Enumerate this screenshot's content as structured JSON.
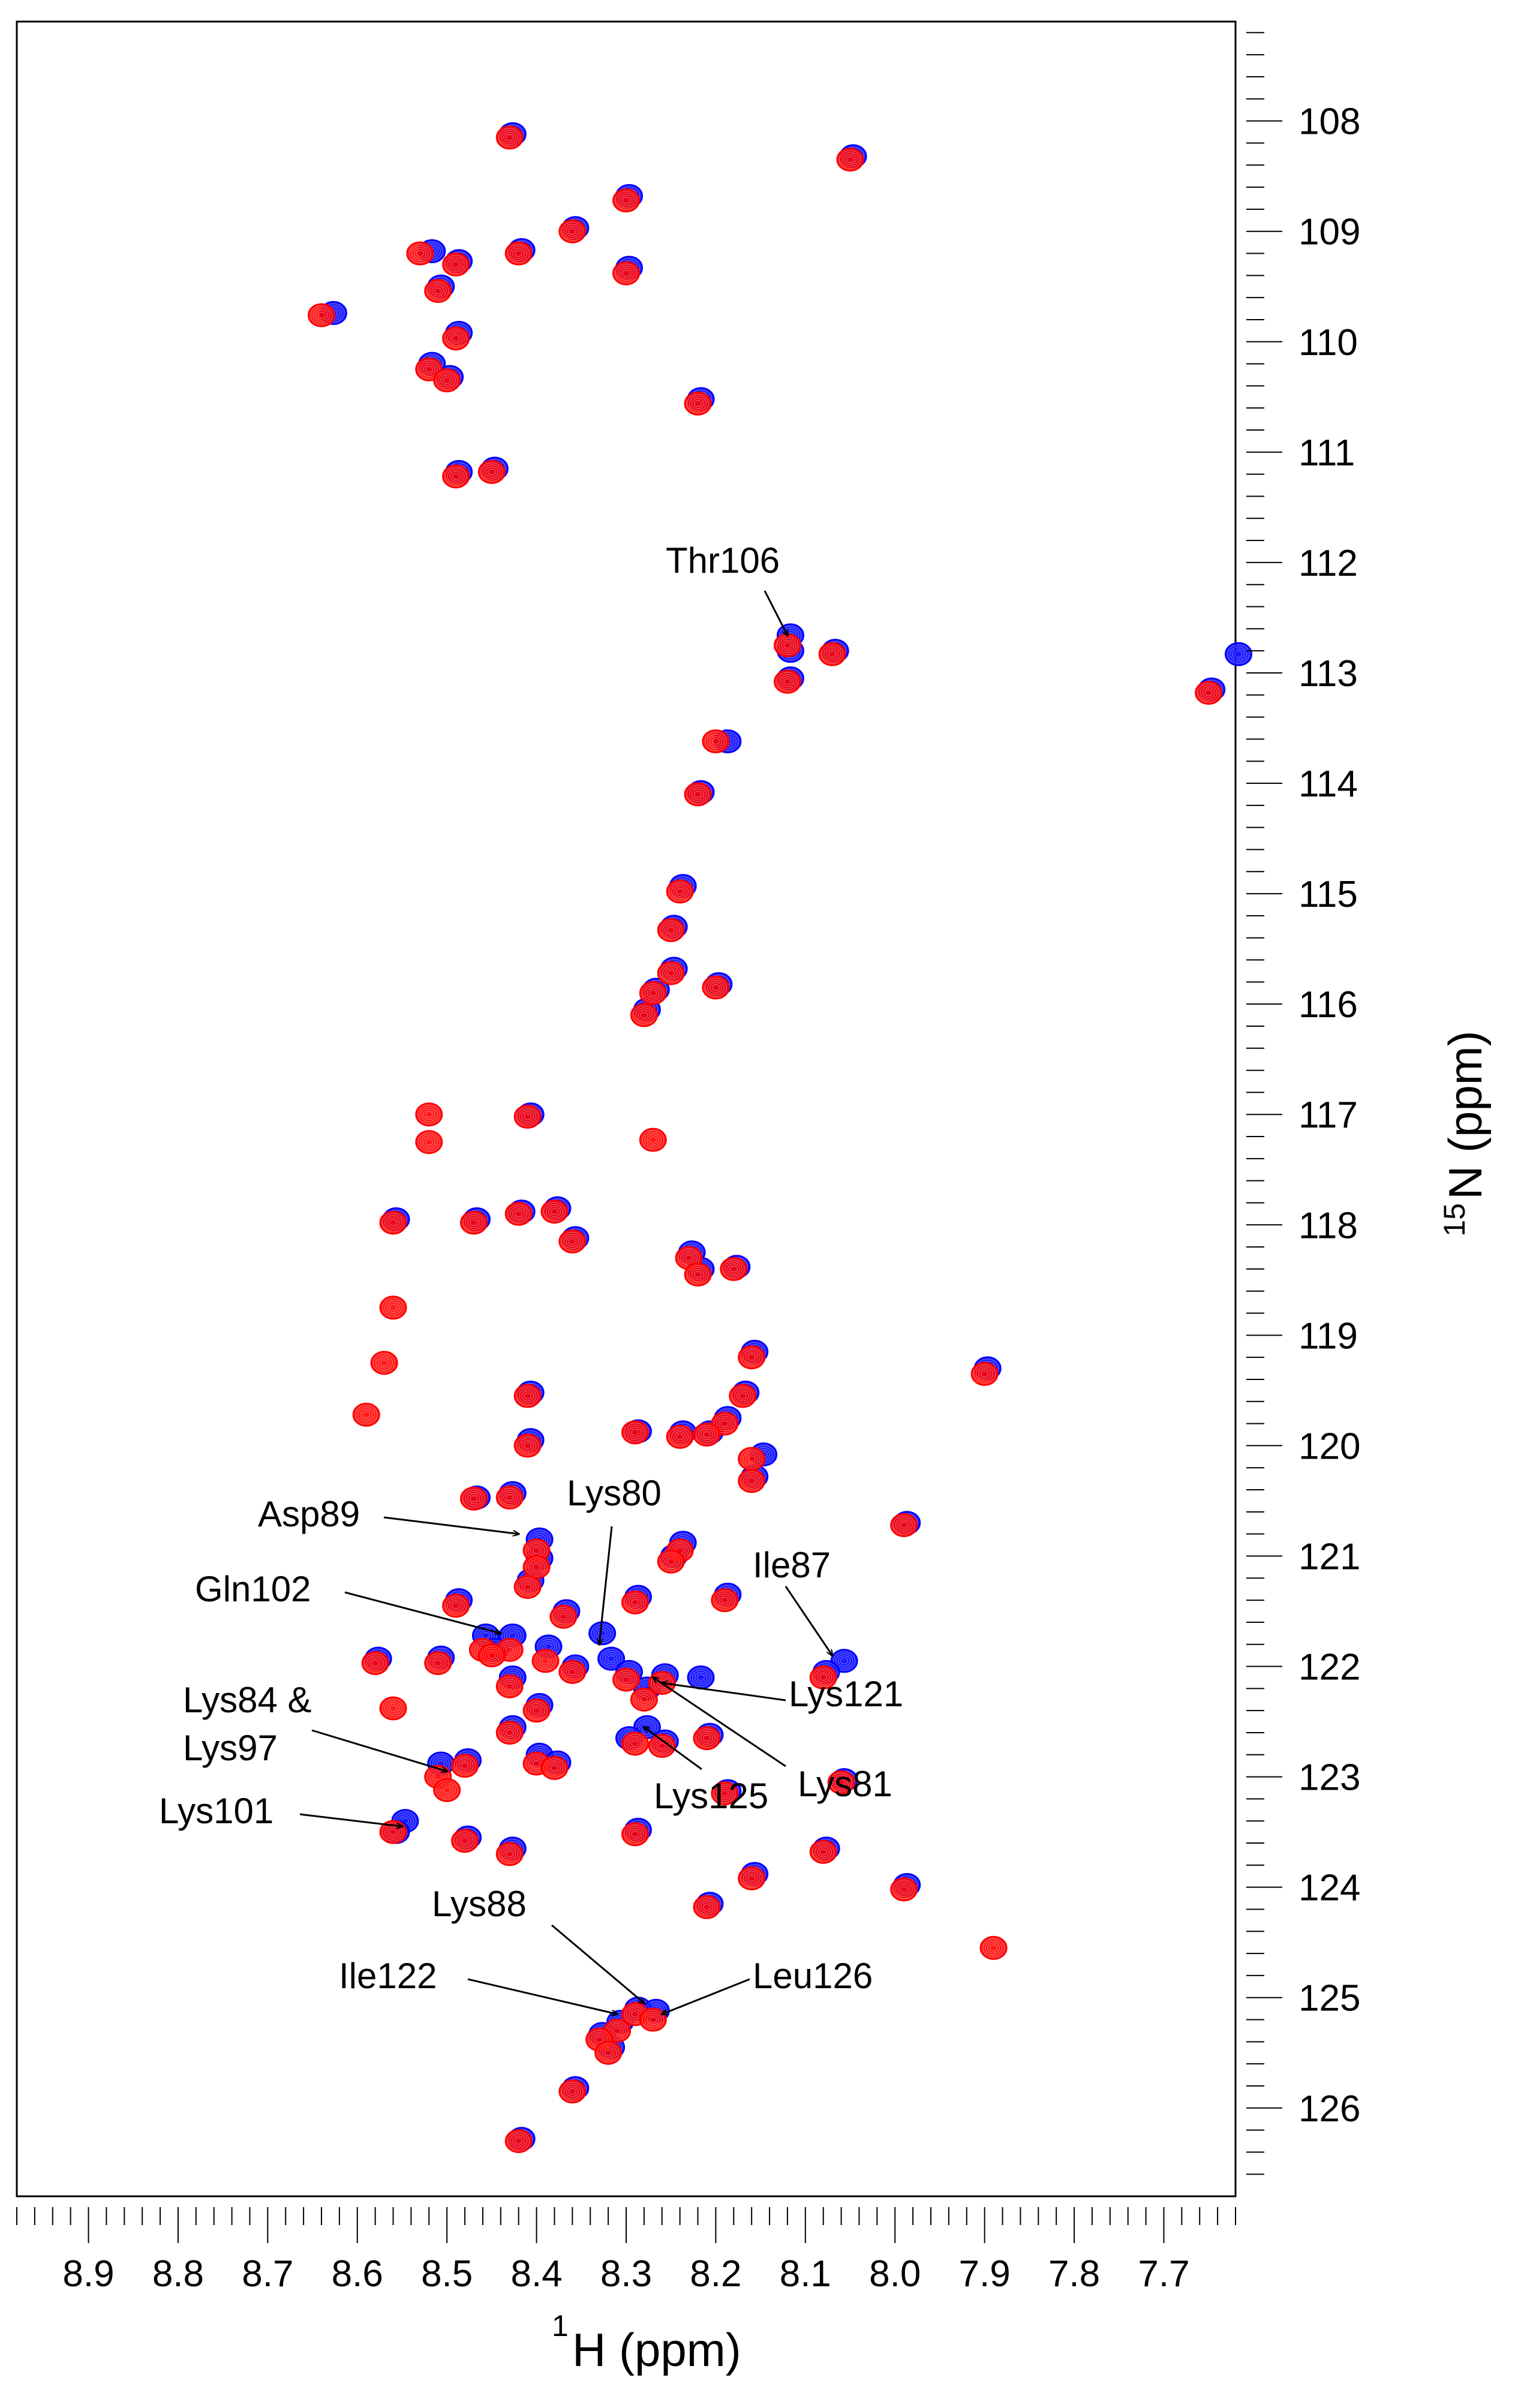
{
  "chart_data": {
    "type": "scatter",
    "title": "",
    "xlabel": {
      "sup": "1",
      "text": "H (ppm)"
    },
    "ylabel": {
      "sup": "15",
      "text": "N (ppm)"
    },
    "xlim": [
      8.98,
      7.62
    ],
    "ylim": [
      107.1,
      126.8
    ],
    "x_ticks": [
      "8.9",
      "8.8",
      "8.7",
      "8.6",
      "8.5",
      "8.4",
      "8.3",
      "8.2",
      "8.1",
      "8.0",
      "7.9",
      "7.8",
      "7.7"
    ],
    "y_ticks": [
      "108",
      "109",
      "110",
      "111",
      "112",
      "113",
      "114",
      "115",
      "116",
      "117",
      "118",
      "119",
      "120",
      "121",
      "122",
      "123",
      "124",
      "125",
      "126"
    ],
    "colors": {
      "spectrum_1": "#0000ff",
      "spectrum_2": "#ff0000",
      "axis": "#000000"
    },
    "series": [
      {
        "name": "spectrum_1",
        "color": "#0000ff",
        "points": [
          [
            8.43,
            108.12
          ],
          [
            8.05,
            108.32
          ],
          [
            8.3,
            108.68
          ],
          [
            8.36,
            108.97
          ],
          [
            8.52,
            109.18
          ],
          [
            8.49,
            109.27
          ],
          [
            8.42,
            109.17
          ],
          [
            8.3,
            109.33
          ],
          [
            8.51,
            109.5
          ],
          [
            8.63,
            109.74
          ],
          [
            8.49,
            109.92
          ],
          [
            8.52,
            110.2
          ],
          [
            8.5,
            110.32
          ],
          [
            8.22,
            110.52
          ],
          [
            8.49,
            111.18
          ],
          [
            8.45,
            111.15
          ],
          [
            8.12,
            112.66
          ],
          [
            8.12,
            112.8
          ],
          [
            8.07,
            112.8
          ],
          [
            7.62,
            112.83
          ],
          [
            8.12,
            113.05
          ],
          [
            7.65,
            113.15
          ],
          [
            8.19,
            113.62
          ],
          [
            8.22,
            114.08
          ],
          [
            8.24,
            114.93
          ],
          [
            8.25,
            115.3
          ],
          [
            8.25,
            115.68
          ],
          [
            8.27,
            115.87
          ],
          [
            8.28,
            116.05
          ],
          [
            8.2,
            115.82
          ],
          [
            8.41,
            117.0
          ],
          [
            8.56,
            117.95
          ],
          [
            8.47,
            117.95
          ],
          [
            8.42,
            117.88
          ],
          [
            8.38,
            117.85
          ],
          [
            8.36,
            118.12
          ],
          [
            8.23,
            118.25
          ],
          [
            8.22,
            118.4
          ],
          [
            8.18,
            118.38
          ],
          [
            8.16,
            119.15
          ],
          [
            8.17,
            119.52
          ],
          [
            8.19,
            119.75
          ],
          [
            8.21,
            119.88
          ],
          [
            8.24,
            119.88
          ],
          [
            8.29,
            119.87
          ],
          [
            8.41,
            119.52
          ],
          [
            8.41,
            119.95
          ],
          [
            8.15,
            120.08
          ],
          [
            8.16,
            120.28
          ],
          [
            7.9,
            119.3
          ],
          [
            7.99,
            120.7
          ],
          [
            8.47,
            120.47
          ],
          [
            8.43,
            120.43
          ],
          [
            8.4,
            120.85
          ],
          [
            8.4,
            121.02
          ],
          [
            8.41,
            121.22
          ],
          [
            8.24,
            120.88
          ],
          [
            8.25,
            121.0
          ],
          [
            8.29,
            121.37
          ],
          [
            8.19,
            121.35
          ],
          [
            8.37,
            121.5
          ],
          [
            8.33,
            121.7
          ],
          [
            8.43,
            121.72
          ],
          [
            8.39,
            121.82
          ],
          [
            8.46,
            121.72
          ],
          [
            8.49,
            121.4
          ],
          [
            8.58,
            121.93
          ],
          [
            8.51,
            121.92
          ],
          [
            8.45,
            121.85
          ],
          [
            8.36,
            122.0
          ],
          [
            8.32,
            121.93
          ],
          [
            8.3,
            122.05
          ],
          [
            8.28,
            122.2
          ],
          [
            8.26,
            122.08
          ],
          [
            8.22,
            122.1
          ],
          [
            8.06,
            121.95
          ],
          [
            8.08,
            122.05
          ],
          [
            8.28,
            122.55
          ],
          [
            8.3,
            122.65
          ],
          [
            8.26,
            122.68
          ],
          [
            8.21,
            122.62
          ],
          [
            8.43,
            122.55
          ],
          [
            8.4,
            122.8
          ],
          [
            8.38,
            122.87
          ],
          [
            8.4,
            122.35
          ],
          [
            8.43,
            122.1
          ],
          [
            8.51,
            122.88
          ],
          [
            8.48,
            122.85
          ],
          [
            8.55,
            123.4
          ],
          [
            8.56,
            123.5
          ],
          [
            8.48,
            123.55
          ],
          [
            8.43,
            123.65
          ],
          [
            8.29,
            123.48
          ],
          [
            8.19,
            123.13
          ],
          [
            8.16,
            123.88
          ],
          [
            8.08,
            123.65
          ],
          [
            8.06,
            123.03
          ],
          [
            7.99,
            123.98
          ],
          [
            8.21,
            124.15
          ],
          [
            8.29,
            125.1
          ],
          [
            8.27,
            125.12
          ],
          [
            8.31,
            125.22
          ],
          [
            8.33,
            125.33
          ],
          [
            8.32,
            125.45
          ],
          [
            8.36,
            125.82
          ],
          [
            8.42,
            126.28
          ]
        ]
      },
      {
        "name": "spectrum_2",
        "color": "#ff0000",
        "points": [
          [
            8.43,
            108.15
          ],
          [
            8.05,
            108.35
          ],
          [
            8.3,
            108.72
          ],
          [
            8.36,
            109.0
          ],
          [
            8.53,
            109.2
          ],
          [
            8.49,
            109.3
          ],
          [
            8.42,
            109.2
          ],
          [
            8.3,
            109.38
          ],
          [
            8.51,
            109.54
          ],
          [
            8.64,
            109.76
          ],
          [
            8.49,
            109.97
          ],
          [
            8.52,
            110.25
          ],
          [
            8.5,
            110.35
          ],
          [
            8.22,
            110.56
          ],
          [
            8.49,
            111.22
          ],
          [
            8.45,
            111.18
          ],
          [
            8.12,
            112.75
          ],
          [
            8.07,
            112.83
          ],
          [
            8.12,
            113.08
          ],
          [
            7.65,
            113.18
          ],
          [
            8.2,
            113.62
          ],
          [
            8.22,
            114.1
          ],
          [
            8.24,
            114.98
          ],
          [
            8.25,
            115.33
          ],
          [
            8.25,
            115.72
          ],
          [
            8.27,
            115.9
          ],
          [
            8.28,
            116.1
          ],
          [
            8.2,
            115.85
          ],
          [
            8.41,
            117.02
          ],
          [
            8.52,
            117.0
          ],
          [
            8.52,
            117.25
          ],
          [
            8.27,
            117.23
          ],
          [
            8.56,
            117.98
          ],
          [
            8.47,
            117.98
          ],
          [
            8.42,
            117.9
          ],
          [
            8.38,
            117.88
          ],
          [
            8.36,
            118.15
          ],
          [
            8.23,
            118.3
          ],
          [
            8.22,
            118.45
          ],
          [
            8.18,
            118.4
          ],
          [
            8.16,
            119.2
          ],
          [
            8.17,
            119.55
          ],
          [
            8.19,
            119.8
          ],
          [
            8.21,
            119.9
          ],
          [
            8.24,
            119.92
          ],
          [
            8.29,
            119.88
          ],
          [
            8.41,
            119.55
          ],
          [
            8.41,
            120.0
          ],
          [
            8.16,
            120.12
          ],
          [
            8.16,
            120.32
          ],
          [
            7.9,
            119.35
          ],
          [
            7.99,
            120.72
          ],
          [
            8.56,
            118.75
          ],
          [
            8.57,
            119.25
          ],
          [
            8.59,
            119.72
          ],
          [
            8.47,
            120.48
          ],
          [
            8.43,
            120.47
          ],
          [
            8.4,
            120.95
          ],
          [
            8.4,
            121.1
          ],
          [
            8.41,
            121.28
          ],
          [
            8.24,
            120.95
          ],
          [
            8.25,
            121.05
          ],
          [
            8.29,
            121.42
          ],
          [
            8.19,
            121.4
          ],
          [
            8.37,
            121.55
          ],
          [
            8.43,
            121.85
          ],
          [
            8.39,
            121.95
          ],
          [
            8.46,
            121.85
          ],
          [
            8.49,
            121.45
          ],
          [
            8.58,
            121.97
          ],
          [
            8.51,
            121.97
          ],
          [
            8.45,
            121.9
          ],
          [
            8.36,
            122.05
          ],
          [
            8.3,
            122.12
          ],
          [
            8.28,
            122.3
          ],
          [
            8.26,
            122.15
          ],
          [
            8.08,
            122.1
          ],
          [
            8.29,
            122.7
          ],
          [
            8.26,
            122.72
          ],
          [
            8.21,
            122.65
          ],
          [
            8.43,
            122.6
          ],
          [
            8.4,
            122.88
          ],
          [
            8.38,
            122.92
          ],
          [
            8.4,
            122.4
          ],
          [
            8.43,
            122.18
          ],
          [
            8.51,
            123.0
          ],
          [
            8.5,
            123.12
          ],
          [
            8.48,
            122.9
          ],
          [
            8.56,
            123.5
          ],
          [
            8.48,
            123.58
          ],
          [
            8.43,
            123.7
          ],
          [
            8.29,
            123.52
          ],
          [
            8.19,
            123.15
          ],
          [
            8.16,
            123.92
          ],
          [
            8.08,
            123.68
          ],
          [
            8.06,
            123.05
          ],
          [
            7.99,
            124.02
          ],
          [
            8.21,
            124.18
          ],
          [
            8.29,
            125.15
          ],
          [
            8.27,
            125.2
          ],
          [
            8.31,
            125.3
          ],
          [
            8.33,
            125.38
          ],
          [
            8.32,
            125.5
          ],
          [
            8.36,
            125.85
          ],
          [
            8.42,
            126.3
          ],
          [
            7.89,
            124.55
          ],
          [
            8.56,
            122.38
          ]
        ]
      }
    ],
    "annotations": [
      {
        "label": "Thr106",
        "target": [
          8.12,
          112.66
        ]
      },
      {
        "label": "Asp89",
        "target": [
          8.42,
          120.8
        ]
      },
      {
        "label": "Lys80",
        "target": [
          8.33,
          121.8
        ]
      },
      {
        "label": "Ile87",
        "target": [
          8.07,
          121.9
        ]
      },
      {
        "label": "Gln102",
        "target": [
          8.44,
          121.7
        ]
      },
      {
        "label": "Lys121",
        "target": [
          8.26,
          122.15
        ]
      },
      {
        "label": "Lys84 &",
        "target": [
          8.5,
          122.95
        ]
      },
      {
        "label": "Lys97",
        "target": [
          8.5,
          122.95
        ]
      },
      {
        "label": "Lys81",
        "target": [
          8.27,
          122.1
        ]
      },
      {
        "label": "Lys125",
        "target": [
          8.28,
          122.55
        ]
      },
      {
        "label": "Lys101",
        "target": [
          8.55,
          123.45
        ]
      },
      {
        "label": "Lys88",
        "target": [
          8.28,
          125.05
        ]
      },
      {
        "label": "Ile122",
        "target": [
          8.31,
          125.15
        ]
      },
      {
        "label": "Leu126",
        "target": [
          8.26,
          125.15
        ]
      }
    ]
  }
}
